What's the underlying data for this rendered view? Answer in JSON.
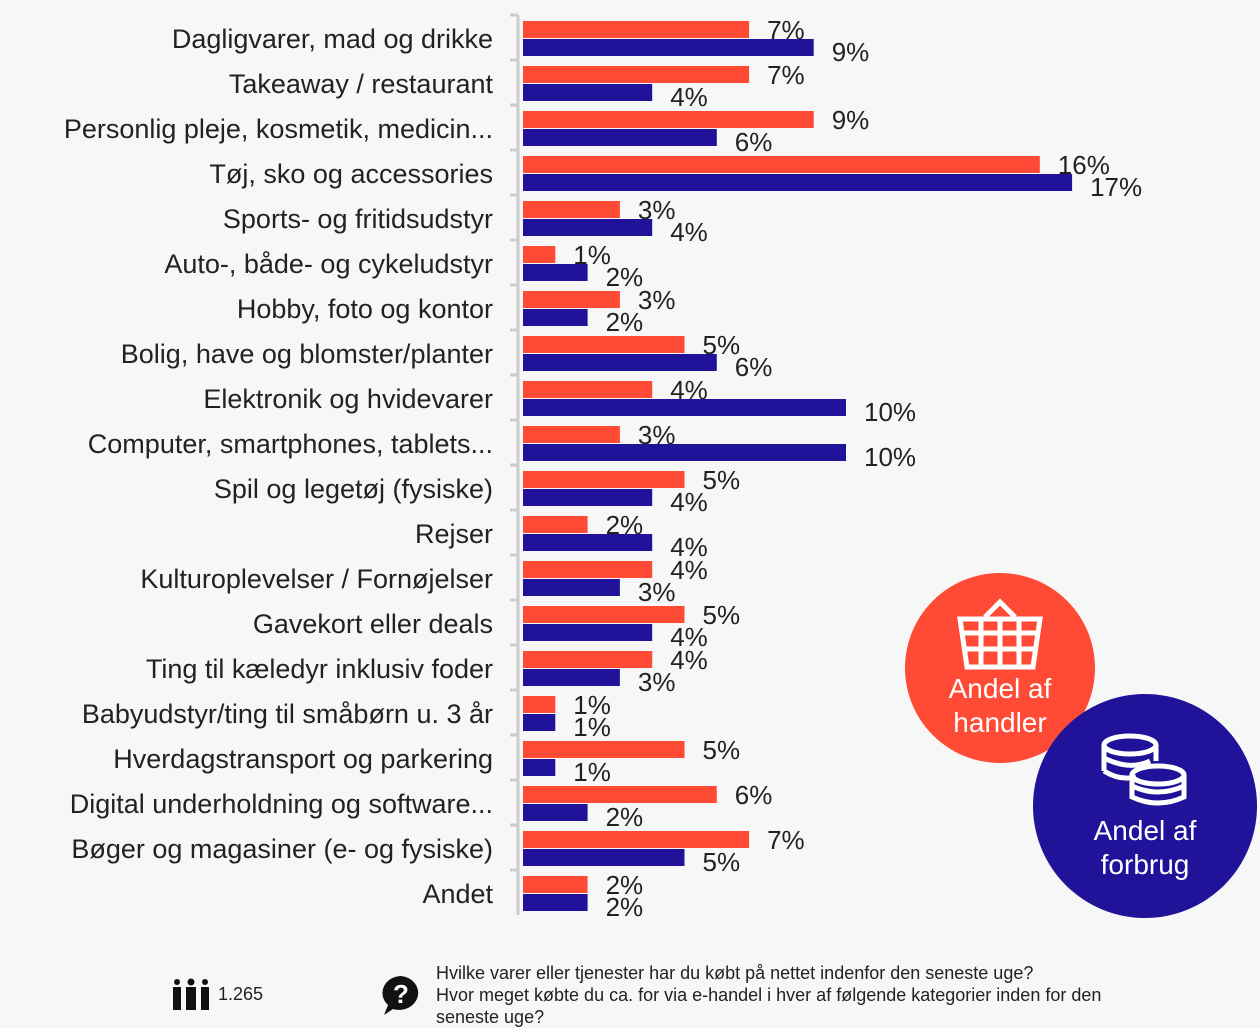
{
  "colors": {
    "handler": "#ff4a36",
    "forbrug": "#20139a"
  },
  "chart_data": {
    "type": "bar",
    "orientation": "horizontal",
    "categories": [
      "Dagligvarer, mad og drikke",
      "Takeaway / restaurant",
      "Personlig pleje, kosmetik, medicin...",
      "Tøj, sko og accessories",
      "Sports- og fritidsudstyr",
      "Auto-, både- og cykeludstyr",
      "Hobby, foto og kontor",
      "Bolig, have og blomster/planter",
      "Elektronik og hvidevarer",
      "Computer, smartphones, tablets...",
      "Spil og legetøj (fysiske)",
      "Rejser",
      "Kulturoplevelser / Fornøjelser",
      "Gavekort eller deals",
      "Ting til kæledyr inklusiv foder",
      "Babyudstyr/ting til småbørn u. 3 år",
      "Hverdagstransport og parkering",
      "Digital underholdning og software...",
      "Bøger og magasiner (e- og fysiske)",
      "Andet"
    ],
    "series": [
      {
        "name": "Andel af handler",
        "values": [
          7,
          7,
          9,
          16,
          3,
          1,
          3,
          5,
          4,
          3,
          5,
          2,
          4,
          5,
          4,
          1,
          5,
          6,
          7,
          2
        ]
      },
      {
        "name": "Andel af forbrug",
        "values": [
          9,
          4,
          6,
          17,
          4,
          2,
          2,
          6,
          10,
          10,
          4,
          4,
          3,
          4,
          3,
          1,
          1,
          2,
          5,
          2
        ]
      }
    ],
    "unit": "%",
    "xlim": [
      0,
      17
    ],
    "grid": false,
    "legend_placement": "bottom-right"
  },
  "legend": {
    "handler": "Andel af handler",
    "forbrug": "Andel af forbrug"
  },
  "footer": {
    "respondents": "1.265",
    "question_lines": [
      "Hvilke varer eller tjenester har du købt på nettet indenfor den seneste uge?",
      "Hvor meget købte du ca. for via e-handel i hver af følgende kategorier inden for den",
      "seneste uge?"
    ]
  }
}
